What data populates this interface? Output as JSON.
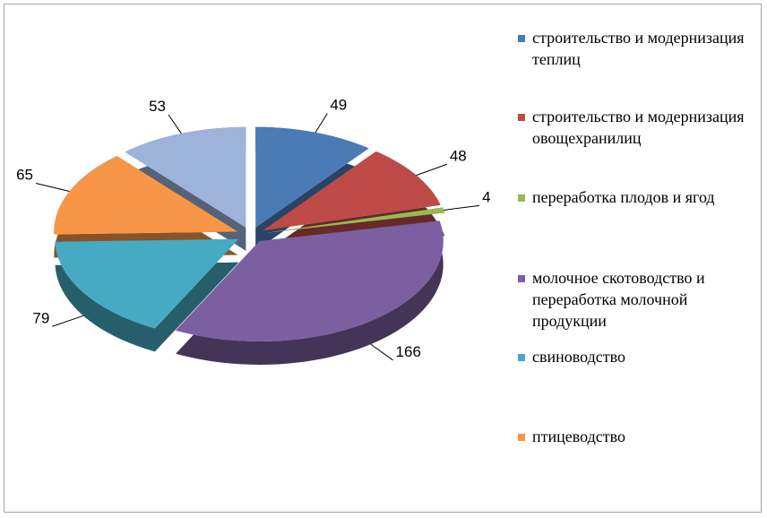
{
  "chart_data": {
    "type": "pie",
    "categories": [
      "строительство и модернизация теплиц",
      "строительство и модернизация овощехранилиц",
      "переработка плодов и ягод",
      "молочное скотоводство и переработка молочной продукции",
      "свиноводство",
      "птицеводство",
      null
    ],
    "values": [
      49,
      48,
      4,
      166,
      79,
      65,
      53
    ],
    "colors": [
      "#4a7bb7",
      "#be4b48",
      "#98b954",
      "#7c5fa0",
      "#46aac5",
      "#f79646",
      "#9db3da"
    ],
    "legend_position": "right"
  }
}
